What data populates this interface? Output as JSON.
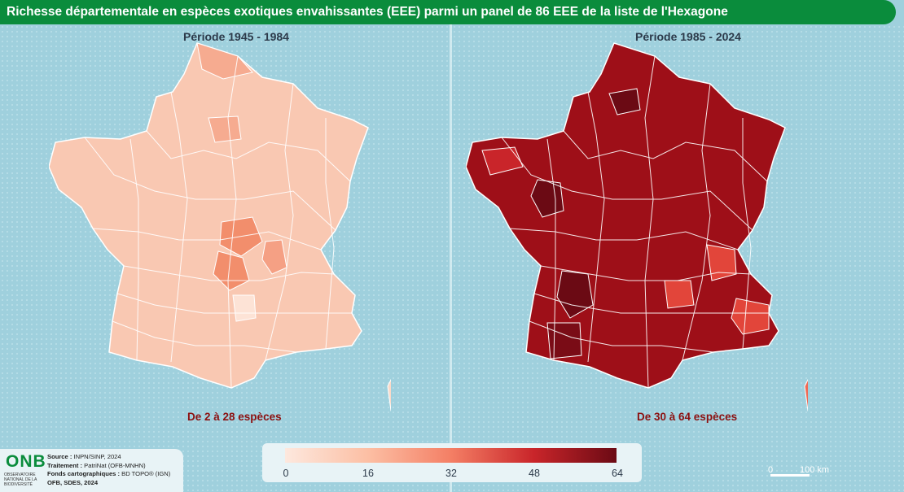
{
  "title": "Richesse départementale en espèces exotiques envahissantes (EEE) parmi un panel de 86 EEE de la liste de l'Hexagone",
  "panels": [
    {
      "period": "Période 1945 - 1984",
      "range": "De 2 à 28 espèces",
      "fill": "#f9c8b2",
      "corsica_fill": "#fbd9c8",
      "highlights": [
        {
          "name": "Allier / Puy-de-Dôme",
          "fill": "#f28e6c"
        },
        {
          "name": "Nord",
          "fill": "#f6ab90"
        }
      ]
    },
    {
      "period": "Période 1985 - 2024",
      "range": "De 30 à 64 espèces",
      "fill": "#9e0f18",
      "corsica_fill": "#ef6a55",
      "highlights": [
        {
          "name": "Vendée / Gironde",
          "fill": "#6b0a14"
        },
        {
          "name": "Alpes",
          "fill": "#e2453a"
        }
      ]
    }
  ],
  "legend": {
    "ticks": [
      "0",
      "16",
      "32",
      "48",
      "64"
    ],
    "min": 0,
    "max": 64
  },
  "logo": {
    "acronym": "ONB",
    "subtitle": "OBSERVATOIRE NATIONAL DE LA BIODIVERSITÉ"
  },
  "credits": [
    {
      "label": "Source :",
      "value": " INPN/SINP, 2024"
    },
    {
      "label": "Traitement :",
      "value": " PatriNat (OFB-MNHN)"
    },
    {
      "label": "Fonds cartographiques :",
      "value": " BD TOPO® (IGN)"
    },
    {
      "label": "OFB, SDES, 2024",
      "value": ""
    }
  ],
  "scale": {
    "zero": "0",
    "length": "100 km"
  },
  "colors": {
    "title_bar": "#0a8c3c",
    "sea": "#9fd0dd",
    "range_text": "#8c1010"
  }
}
